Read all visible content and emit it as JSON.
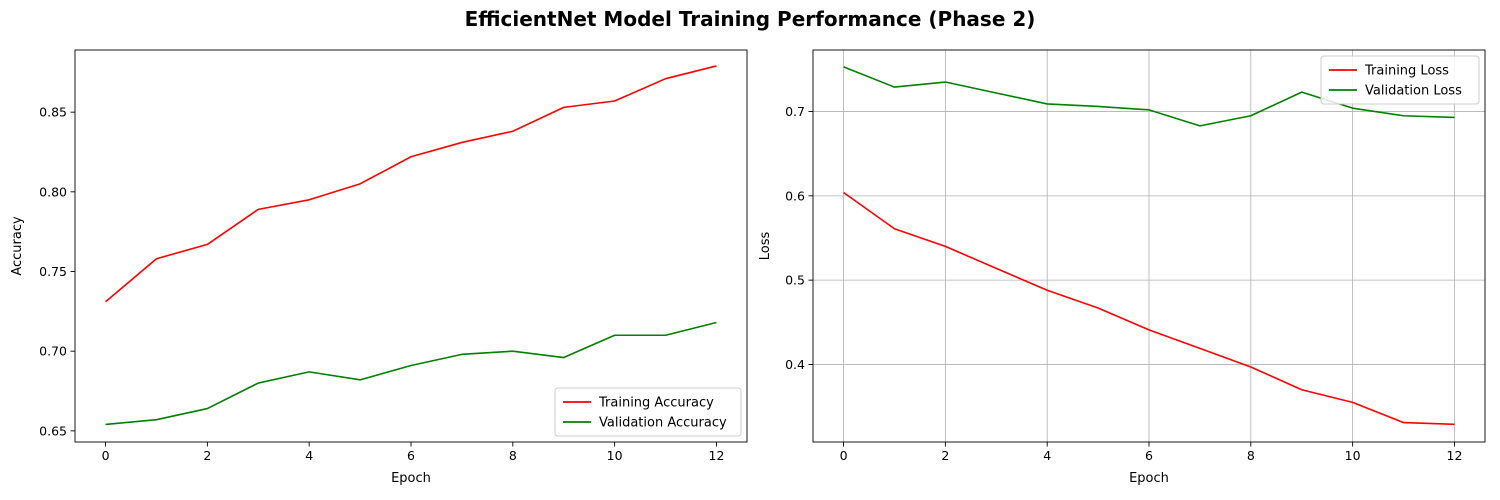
{
  "title": "EfficientNet Model Training Performance (Phase 2)",
  "chart_data": [
    {
      "type": "line",
      "xlabel": "Epoch",
      "ylabel": "Accuracy",
      "x": [
        0,
        1,
        2,
        3,
        4,
        5,
        6,
        7,
        8,
        9,
        10,
        11,
        12
      ],
      "xlim": [
        -0.6,
        12.6
      ],
      "ylim": [
        0.643,
        0.889
      ],
      "xticks": [
        0,
        2,
        4,
        6,
        8,
        10,
        12
      ],
      "yticks": [
        0.65,
        0.7,
        0.75,
        0.8,
        0.85
      ],
      "ytick_labels": [
        "0.65",
        "0.70",
        "0.75",
        "0.80",
        "0.85"
      ],
      "grid": false,
      "legend_position": "lower-right",
      "series": [
        {
          "name": "Training Accuracy",
          "color": "#ff0000",
          "values": [
            0.731,
            0.758,
            0.767,
            0.789,
            0.795,
            0.805,
            0.822,
            0.831,
            0.838,
            0.853,
            0.857,
            0.871,
            0.879
          ]
        },
        {
          "name": "Validation Accuracy",
          "color": "#008000",
          "values": [
            0.654,
            0.657,
            0.664,
            0.68,
            0.687,
            0.682,
            0.691,
            0.698,
            0.7,
            0.696,
            0.71,
            0.71,
            0.718
          ]
        }
      ]
    },
    {
      "type": "line",
      "xlabel": "Epoch",
      "ylabel": "Loss",
      "x": [
        0,
        1,
        2,
        3,
        4,
        5,
        6,
        7,
        8,
        9,
        10,
        11,
        12
      ],
      "xlim": [
        -0.6,
        12.6
      ],
      "ylim": [
        0.308,
        0.773
      ],
      "xticks": [
        0,
        2,
        4,
        6,
        8,
        10,
        12
      ],
      "yticks": [
        0.4,
        0.5,
        0.6,
        0.7
      ],
      "ytick_labels": [
        "0.4",
        "0.5",
        "0.6",
        "0.7"
      ],
      "grid": true,
      "legend_position": "upper-right",
      "series": [
        {
          "name": "Training Loss",
          "color": "#ff0000",
          "values": [
            0.604,
            0.561,
            0.54,
            0.514,
            0.488,
            0.467,
            0.441,
            0.419,
            0.397,
            0.37,
            0.355,
            0.331,
            0.329
          ]
        },
        {
          "name": "Validation Loss",
          "color": "#008000",
          "values": [
            0.753,
            0.729,
            0.735,
            0.722,
            0.709,
            0.706,
            0.702,
            0.683,
            0.695,
            0.723,
            0.704,
            0.695,
            0.693
          ]
        }
      ]
    }
  ]
}
